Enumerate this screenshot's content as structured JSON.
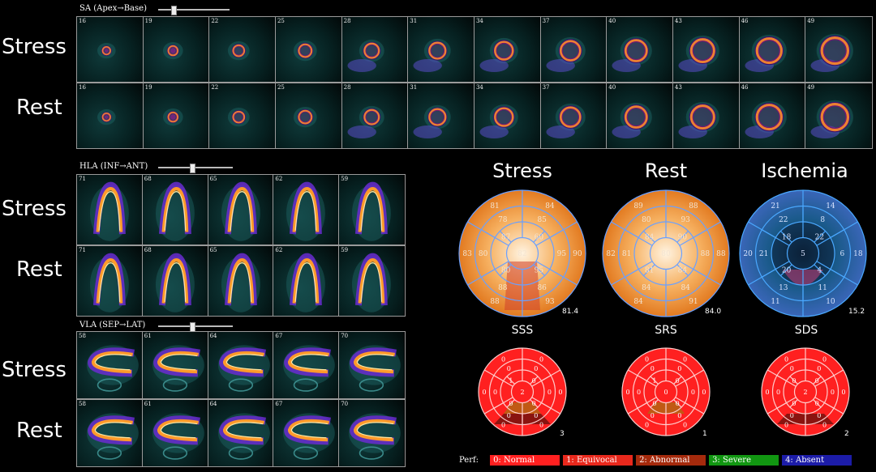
{
  "sections": {
    "sa": {
      "label": "SA (Apex→Base)",
      "slider_position": 0.18,
      "frames": [
        "16",
        "19",
        "22",
        "25",
        "28",
        "31",
        "34",
        "37",
        "40",
        "43",
        "46",
        "49"
      ]
    },
    "hla": {
      "label": "HLA (INF→ANT)",
      "slider_position": 0.42,
      "frames": [
        "71",
        "68",
        "65",
        "62",
        "59"
      ]
    },
    "vla": {
      "label": "VLA (SEP→LAT)",
      "slider_position": 0.42,
      "frames": [
        "58",
        "61",
        "64",
        "67",
        "70"
      ]
    }
  },
  "row_labels": {
    "stress": "Stress",
    "rest": "Rest"
  },
  "polar_maps": [
    {
      "title": "Stress",
      "total": "81.4",
      "segments": [
        "84",
        "90",
        "93",
        "88",
        "83",
        "81",
        "85",
        "95",
        "86",
        "88",
        "80",
        "78",
        "60",
        "95",
        "80",
        "87",
        "82"
      ]
    },
    {
      "title": "Rest",
      "total": "84.0",
      "segments": [
        "88",
        "88",
        "91",
        "84",
        "82",
        "89",
        "93",
        "88",
        "84",
        "84",
        "81",
        "80",
        "90",
        "84",
        "81",
        "84",
        "80"
      ]
    },
    {
      "title": "Ischemia",
      "total": "15.2",
      "segments": [
        "14",
        "18",
        "10",
        "11",
        "20",
        "21",
        "8",
        "6",
        "11",
        "13",
        "21",
        "22",
        "22",
        "4",
        "20",
        "18",
        "5"
      ]
    }
  ],
  "score_maps": [
    {
      "title": "SSS",
      "total": "3",
      "abnormal_segments": [
        12,
        13
      ],
      "scores": [
        "0",
        "0",
        "0",
        "0",
        "0",
        "0",
        "0",
        "0",
        "0",
        "0",
        "0",
        "0",
        "0",
        "0",
        "0",
        "1",
        "2"
      ]
    },
    {
      "title": "SRS",
      "total": "1",
      "abnormal_segments": [
        12
      ],
      "scores": [
        "0",
        "0",
        "0",
        "0",
        "0",
        "0",
        "0",
        "0",
        "0",
        "0",
        "0",
        "0",
        "0",
        "0",
        "0",
        "1",
        "0"
      ]
    },
    {
      "title": "SDS",
      "total": "2",
      "abnormal_segments": [
        13
      ],
      "scores": [
        "0",
        "0",
        "0",
        "0",
        "0",
        "0",
        "0",
        "0",
        "0",
        "0",
        "0",
        "0",
        "0",
        "0",
        "0",
        "0",
        "2"
      ]
    }
  ],
  "legend": {
    "label": "Perf:",
    "items": [
      {
        "text": "0: Normal",
        "color": "#ff2020"
      },
      {
        "text": "1: Equivocal",
        "color": "#e8281c"
      },
      {
        "text": "2: Abnormal",
        "color": "#a52a0c"
      },
      {
        "text": "3: Severe",
        "color": "#119611"
      },
      {
        "text": "4: Absent",
        "color": "#1c1ca8"
      }
    ]
  }
}
